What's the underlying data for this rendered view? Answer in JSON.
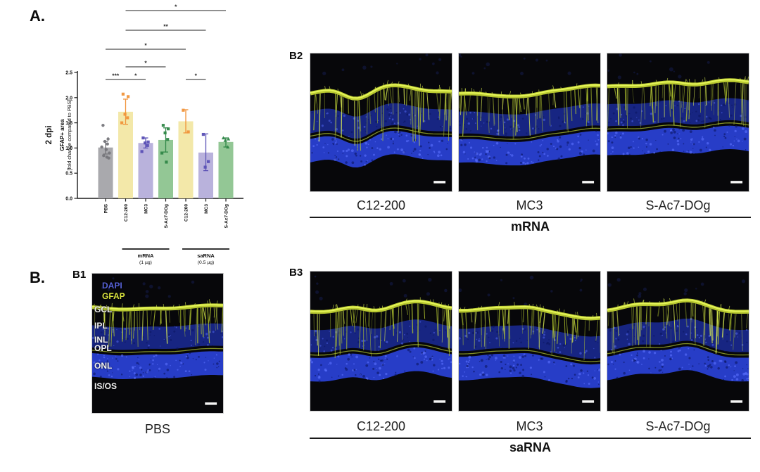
{
  "panels": {
    "a_label": "A.",
    "b_label": "B."
  },
  "chart_data": {
    "type": "bar",
    "title_rotated": "2 dpi",
    "ylabel_line1": "GFAP+ area",
    "ylabel_line2": "[fold change compared to PBS]",
    "ylim": [
      0.0,
      2.5
    ],
    "yticks": [
      0.0,
      0.5,
      1.0,
      1.5,
      2.0,
      2.5
    ],
    "grid": false,
    "legend": "none",
    "categories": [
      "PBS",
      "C12-200",
      "MC3",
      "S-Ac7-DOg",
      "C12-200",
      "MC3",
      "S-Ac7-DOg"
    ],
    "values": [
      1.01,
      1.72,
      1.1,
      1.16,
      1.53,
      0.91,
      1.12
    ],
    "error_low": [
      0.88,
      1.47,
      1.0,
      0.92,
      1.3,
      0.55,
      1.02
    ],
    "error_high": [
      1.13,
      1.97,
      1.2,
      1.4,
      1.76,
      1.28,
      1.2
    ],
    "points": [
      [
        1.45,
        1.18,
        1.13,
        1.08,
        1.02,
        0.97,
        0.9,
        0.85,
        0.82,
        0.8
      ],
      [
        2.07,
        2.02,
        1.67,
        1.6,
        1.5
      ],
      [
        1.2,
        1.12,
        1.1,
        1.05,
        0.93
      ],
      [
        1.45,
        1.38,
        1.3,
        1.17,
        0.9,
        0.72
      ],
      [
        1.75,
        1.32
      ],
      [
        1.27,
        0.73,
        0.62
      ],
      [
        1.2,
        1.18,
        1.15,
        1.02
      ]
    ],
    "bar_colors": [
      "#a9a9ad",
      "#f3e8a9",
      "#b9b2dc",
      "#93c795",
      "#f3e8a9",
      "#b9b2dc",
      "#93c795"
    ],
    "point_colors": [
      "#76767b",
      "#f0933a",
      "#5a50b5",
      "#2f8747",
      "#f0933a",
      "#5a50b5",
      "#2f8747"
    ],
    "group_labels": [
      {
        "label": "mRNA",
        "sublabel": "(1 µg)",
        "from": 1,
        "to": 3
      },
      {
        "label": "saRNA",
        "sublabel": "(0.5 µg)",
        "from": 4,
        "to": 6
      }
    ],
    "significance": [
      {
        "from": 1,
        "to": 6,
        "label": "*",
        "tier": 0
      },
      {
        "from": 1,
        "to": 5,
        "label": "**",
        "tier": 1
      },
      {
        "from": 0,
        "to": 4,
        "label": "*",
        "tier": 2
      },
      {
        "from": 1,
        "to": 3,
        "label": "*",
        "tier": 3
      },
      {
        "from": 0,
        "to": 1,
        "label": "***",
        "tier": 4
      },
      {
        "from": 1,
        "to": 2,
        "label": "*",
        "tier": 4
      },
      {
        "from": 4,
        "to": 5,
        "label": "*",
        "tier": 4
      }
    ]
  },
  "b1": {
    "label": "B1",
    "caption": "PBS",
    "overlay": {
      "dapi": "DAPI",
      "gfap": "GFAP",
      "layers": [
        "GCL",
        "IPL",
        "INL",
        "OPL",
        "ONL",
        "IS/OS"
      ]
    }
  },
  "b2": {
    "label": "B2",
    "captions": [
      "C12-200",
      "MC3",
      "S-Ac7-DOg"
    ],
    "group": "mRNA"
  },
  "b3": {
    "label": "B3",
    "captions": [
      "C12-200",
      "MC3",
      "S-Ac7-DOg"
    ],
    "group": "saRNA"
  },
  "colors": {
    "gfap_stain": "#c3d434",
    "dapi_stain": "#2940d2",
    "dapi_label": "#5661d6",
    "gfap_label": "#d9e23e",
    "scale_bar": "#f5f5f5"
  }
}
